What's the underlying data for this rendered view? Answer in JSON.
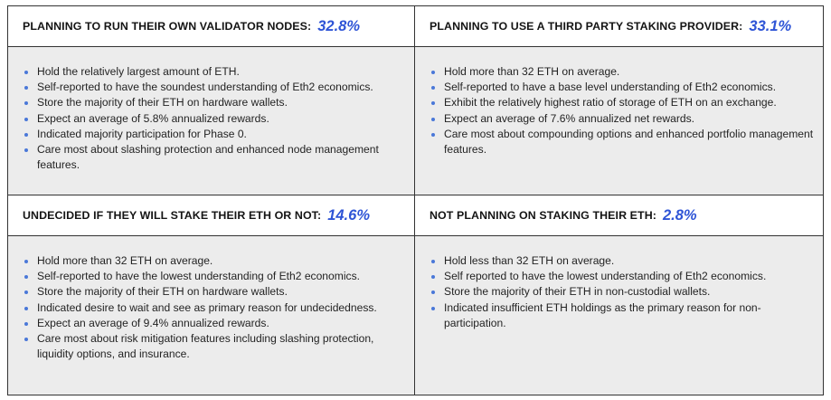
{
  "panels": [
    {
      "title": "PLANNING TO RUN THEIR OWN VALIDATOR NODES:",
      "percent": "32.8%",
      "items": [
        "Hold the relatively largest amount of ETH.",
        "Self-reported to have the soundest understanding of Eth2 economics.",
        "Store the majority of their ETH on hardware wallets.",
        "Expect an average of 5.8% annualized rewards.",
        "Indicated majority participation for Phase 0.",
        "Care most about slashing protection and enhanced node management features."
      ]
    },
    {
      "title": "PLANNING TO USE A THIRD PARTY STAKING PROVIDER:",
      "percent": "33.1%",
      "items": [
        "Hold more than 32 ETH on average.",
        "Self-reported to have a base level understanding of Eth2 economics.",
        "Exhibit the relatively highest ratio of storage of ETH on an exchange.",
        "Expect an average of 7.6% annualized net rewards.",
        "Care most about compounding options and enhanced portfolio management features."
      ]
    },
    {
      "title": "UNDECIDED IF THEY WILL STAKE THEIR ETH OR NOT:",
      "percent": "14.6%",
      "items": [
        "Hold more than 32 ETH on average.",
        "Self-reported to have the lowest understanding of Eth2 economics.",
        "Store the majority of their ETH on hardware wallets.",
        "Indicated desire to wait and see as primary reason for undecidedness.",
        "Expect an average of 9.4% annualized rewards.",
        "Care most about risk mitigation features including slashing protection, liquidity options, and insurance."
      ]
    },
    {
      "title": "NOT PLANNING ON STAKING THEIR ETH:",
      "percent": "2.8%",
      "items": [
        "Hold less than 32 ETH on average.",
        "Self reported to have the lowest understanding of Eth2 economics.",
        "Store the majority of their ETH in non-custodial wallets.",
        "Indicated insufficient ETH holdings as the primary reason for non-participation."
      ]
    }
  ],
  "colors": {
    "accent": "#2e54d6",
    "bullet": "#4a78d8",
    "panel_bg": "#ececec",
    "border": "#333333"
  }
}
